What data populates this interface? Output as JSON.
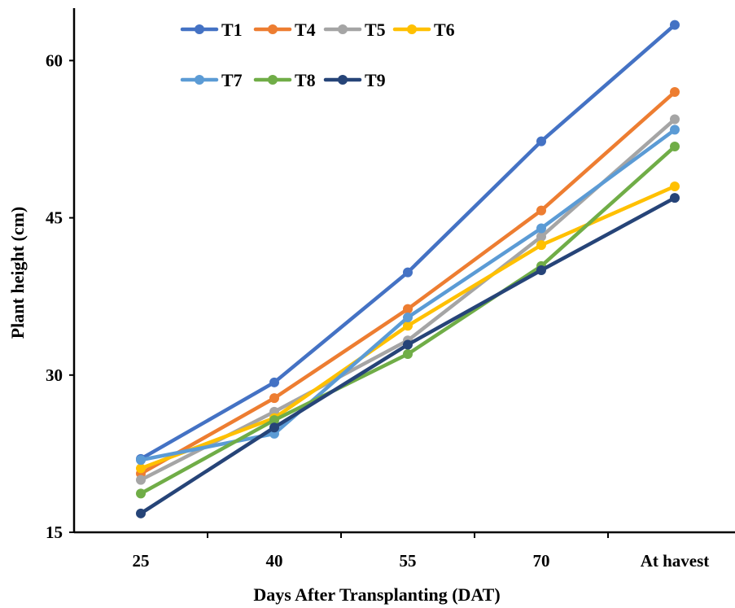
{
  "chart_data": {
    "type": "line",
    "title": "",
    "xlabel": "Days After Transplanting (DAT)",
    "ylabel": "Plant height (cm)",
    "categories": [
      "25",
      "40",
      "55",
      "70",
      "At havest"
    ],
    "ylim": [
      15,
      65
    ],
    "yticks": [
      15,
      30,
      45,
      60
    ],
    "grid": false,
    "legend_position": "top",
    "series": [
      {
        "name": "T1",
        "color": "#4472C4",
        "values": [
          22.0,
          29.3,
          39.8,
          52.3,
          63.4
        ]
      },
      {
        "name": "T4",
        "color": "#ED7D31",
        "values": [
          20.6,
          27.8,
          36.3,
          45.7,
          57.0
        ]
      },
      {
        "name": "T5",
        "color": "#A5A5A5",
        "values": [
          20.0,
          26.5,
          33.3,
          43.2,
          54.4
        ]
      },
      {
        "name": "T6",
        "color": "#FFC000",
        "values": [
          21.1,
          25.9,
          34.7,
          42.4,
          48.0
        ]
      },
      {
        "name": "T7",
        "color": "#5B9BD5",
        "values": [
          21.9,
          24.4,
          35.5,
          44.0,
          53.4
        ]
      },
      {
        "name": "T8",
        "color": "#70AD47",
        "values": [
          18.7,
          25.7,
          32.0,
          40.4,
          51.8
        ]
      },
      {
        "name": "T9",
        "color": "#264478",
        "values": [
          16.8,
          25.0,
          32.9,
          40.0,
          46.9
        ]
      }
    ]
  }
}
